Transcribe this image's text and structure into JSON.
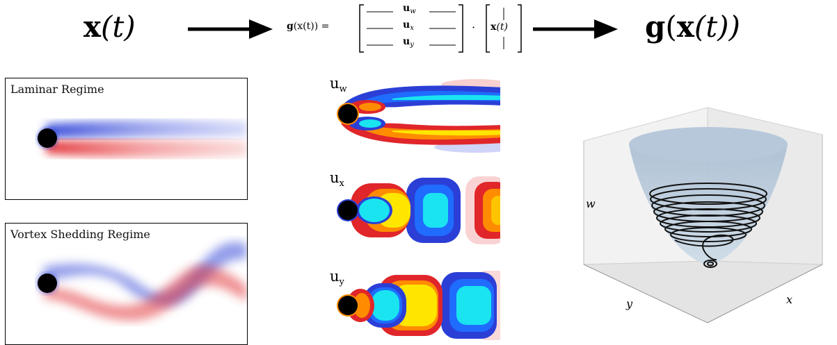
{
  "header": {
    "input_expr": "x(t)",
    "input_bold": "x",
    "input_arg": "(t)",
    "equation_lhs_g": "g",
    "equation_lhs_arg": "(x(t)) =",
    "matrix_rows": [
      "u",
      "u",
      "u"
    ],
    "matrix_subs": [
      "w",
      "x",
      "y"
    ],
    "dot": "·",
    "vector_entry_bold": "x",
    "vector_entry_arg": "(t)",
    "output_g": "g",
    "output_arg_open": "(",
    "output_x": "x",
    "output_arg": "(t))"
  },
  "left_panels": [
    {
      "label": "Laminar Regime"
    },
    {
      "label": "Vortex Shedding Regime"
    }
  ],
  "modes": [
    {
      "letter": "u",
      "sub": "w"
    },
    {
      "letter": "u",
      "sub": "x"
    },
    {
      "letter": "u",
      "sub": "y"
    }
  ],
  "plot3d": {
    "axis_w": "w",
    "axis_x": "x",
    "axis_y": "y",
    "surface_color": "#b9cbdc",
    "trajectory_color": "#111111"
  },
  "colors": {
    "positive": "#e0262a",
    "negative": "#2b3fd6",
    "yellow": "#ffe600",
    "cyan": "#19e4f0"
  }
}
